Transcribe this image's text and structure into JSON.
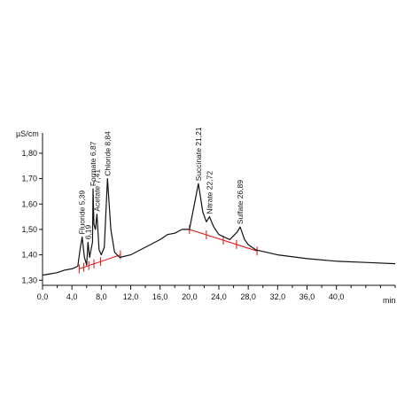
{
  "chart_data": {
    "type": "line",
    "ylabel": "µS/cm",
    "xlabel": "min",
    "xlim": [
      0,
      48
    ],
    "ylim": [
      1.28,
      1.88
    ],
    "x_ticks": [
      "0,0",
      "4,0",
      "8,0",
      "12,0",
      "16,0",
      "20,0",
      "24,0",
      "28,0",
      "32,0",
      "36,0",
      "40,0"
    ],
    "x_tick_values": [
      0,
      4,
      8,
      12,
      16,
      20,
      24,
      28,
      32,
      36,
      40
    ],
    "y_ticks": [
      "1,30",
      "1,40",
      "1,50",
      "1,60",
      "1,70",
      "1,80"
    ],
    "y_tick_values": [
      1.3,
      1.4,
      1.5,
      1.6,
      1.7,
      1.8
    ],
    "series": [
      {
        "color": "#111111",
        "x": [
          0,
          1,
          2,
          3,
          4,
          4.8,
          5.1,
          5.39,
          5.7,
          6.0,
          6.19,
          6.4,
          6.8,
          6.87,
          7.0,
          7.2,
          7.41,
          7.7,
          8.0,
          8.4,
          8.84,
          9.3,
          9.8,
          10.5,
          12,
          14,
          16,
          17,
          18,
          19,
          20,
          21.21,
          21.8,
          22.3,
          22.72,
          23.3,
          24,
          25.5,
          26.5,
          26.89,
          27.5,
          28,
          29,
          32,
          36,
          40,
          44,
          48
        ],
        "y": [
          1.32,
          1.325,
          1.33,
          1.34,
          1.345,
          1.355,
          1.42,
          1.47,
          1.39,
          1.36,
          1.45,
          1.39,
          1.45,
          1.66,
          1.52,
          1.5,
          1.56,
          1.42,
          1.4,
          1.43,
          1.7,
          1.5,
          1.41,
          1.39,
          1.4,
          1.43,
          1.46,
          1.48,
          1.485,
          1.5,
          1.5,
          1.68,
          1.57,
          1.53,
          1.55,
          1.51,
          1.48,
          1.46,
          1.49,
          1.51,
          1.46,
          1.44,
          1.42,
          1.4,
          1.385,
          1.375,
          1.37,
          1.365
        ]
      }
    ],
    "baseline_segments": [
      {
        "color": "#e02020",
        "x": [
          5.0,
          10.6
        ],
        "y": [
          1.345,
          1.4
        ],
        "cut_marks_x": [
          5.0,
          5.6,
          6.3,
          7.0,
          7.9,
          10.6
        ]
      },
      {
        "color": "#e02020",
        "x": [
          20.0,
          29.2
        ],
        "y": [
          1.5,
          1.415
        ],
        "cut_marks_x": [
          20.0,
          22.3,
          24.6,
          26.4,
          29.2
        ]
      }
    ],
    "annotations": [
      {
        "text": "Fluoride 5,39",
        "x": 5.39,
        "y": 1.47
      },
      {
        "text": "6,19",
        "x": 6.19,
        "y": 1.45
      },
      {
        "text": "Formate 6,87",
        "x": 6.87,
        "y": 1.66
      },
      {
        "text": "Acetate 7,41",
        "x": 7.41,
        "y": 1.56
      },
      {
        "text": "Chloride 8,84",
        "x": 8.84,
        "y": 1.7
      },
      {
        "text": "Succinate 21,21",
        "x": 21.21,
        "y": 1.68
      },
      {
        "text": "Nitrate 22,72",
        "x": 22.72,
        "y": 1.55
      },
      {
        "text": "Sulfate 26,89",
        "x": 26.89,
        "y": 1.51
      }
    ]
  }
}
